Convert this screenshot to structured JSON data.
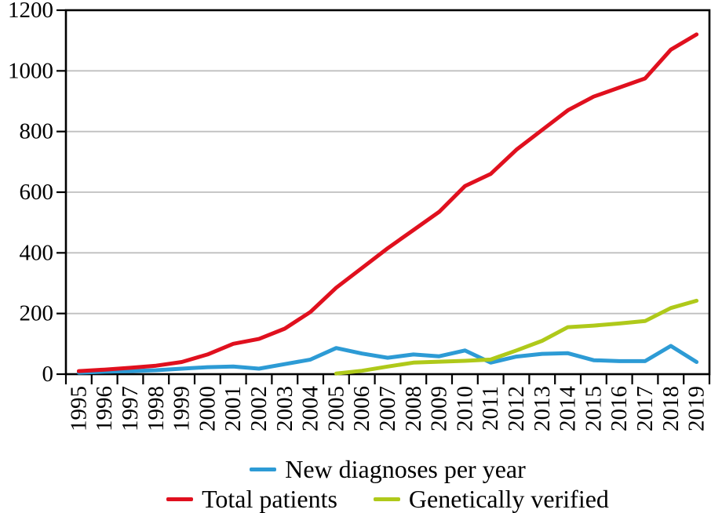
{
  "chart_data": {
    "type": "line",
    "title": "",
    "xlabel": "",
    "ylabel": "",
    "x": [
      1995,
      1996,
      1997,
      1998,
      1999,
      2000,
      2001,
      2002,
      2003,
      2004,
      2005,
      2006,
      2007,
      2008,
      2009,
      2010,
      2011,
      2012,
      2013,
      2014,
      2015,
      2016,
      2017,
      2018,
      2019
    ],
    "series": [
      {
        "name": "New diagnoses per year",
        "color": "#2D9BD5",
        "values": [
          5,
          8,
          10,
          13,
          18,
          23,
          25,
          18,
          33,
          48,
          86,
          68,
          54,
          65,
          59,
          78,
          38,
          58,
          67,
          69,
          46,
          43,
          43,
          93,
          40
        ]
      },
      {
        "name": "Total patients",
        "color": "#E0101E",
        "values": [
          10,
          15,
          21,
          28,
          40,
          65,
          100,
          116,
          150,
          205,
          285,
          350,
          415,
          475,
          535,
          620,
          660,
          740,
          805,
          870,
          915,
          945,
          975,
          1070,
          1120
        ]
      },
      {
        "name": "Genetically verified",
        "color": "#AFC91A",
        "values": [
          null,
          null,
          null,
          null,
          null,
          null,
          null,
          null,
          null,
          null,
          2,
          11,
          25,
          38,
          41,
          44,
          48,
          78,
          110,
          155,
          160,
          167,
          175,
          218,
          242
        ]
      }
    ],
    "ylim": [
      0,
      1200
    ],
    "yticks": [
      0,
      200,
      400,
      600,
      800,
      1000,
      1200
    ],
    "grid": true,
    "legend_position": "bottom",
    "legend_rows": [
      [
        0
      ],
      [
        1,
        2
      ]
    ],
    "colors": {
      "axis": "#000000",
      "grid": "#BFBFBF",
      "text": "#000000",
      "background": "#FFFFFF"
    }
  }
}
